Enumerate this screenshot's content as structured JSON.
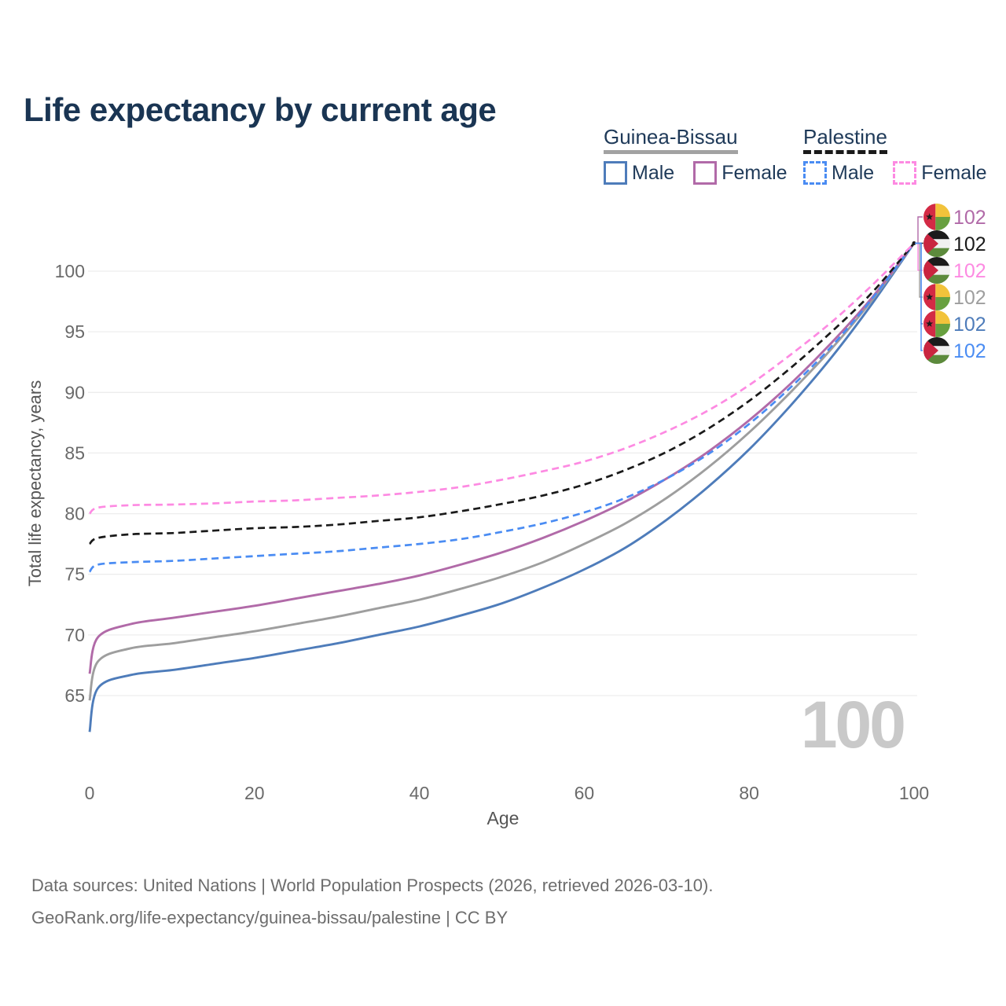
{
  "title": "Life expectancy by current age",
  "legend": {
    "groups": [
      {
        "id": "guinea-bissau",
        "label": "Guinea-Bissau",
        "underline_style": "solid",
        "underline_color": "#a2a2a2",
        "items": [
          {
            "label": "Male",
            "color": "#4e7cba",
            "style": "solid"
          },
          {
            "label": "Female",
            "color": "#b16aa8",
            "style": "solid"
          }
        ]
      },
      {
        "id": "palestine",
        "label": "Palestine",
        "underline_style": "dashed",
        "underline_color": "#1a1a1a",
        "items": [
          {
            "label": "Male",
            "color": "#4a8cf3",
            "style": "dashed"
          },
          {
            "label": "Female",
            "color": "#fd8ae2",
            "style": "dashed"
          }
        ]
      }
    ]
  },
  "watermark": "100",
  "footer": {
    "line1": "Data sources: United Nations | World Population Prospects (2026, retrieved 2026-03-10).",
    "line2": "GeoRank.org/life-expectancy/guinea-bissau/palestine | CC BY"
  },
  "chart_data": {
    "type": "line",
    "title": "Life expectancy by current age",
    "xlabel": "Age",
    "ylabel": "Total life expectancy, years",
    "xlim": [
      0,
      100
    ],
    "ylim": [
      61,
      103
    ],
    "x_ticks": [
      0,
      20,
      40,
      60,
      80,
      100
    ],
    "y_ticks": [
      65,
      70,
      75,
      80,
      85,
      90,
      95,
      100
    ],
    "grid": "horizontal",
    "legend_position": "top-right",
    "ages": [
      0,
      1,
      5,
      10,
      15,
      20,
      25,
      30,
      35,
      40,
      45,
      50,
      55,
      60,
      65,
      70,
      75,
      80,
      85,
      90,
      95,
      100
    ],
    "series": [
      {
        "id": "gb-male",
        "name": "Guinea-Bissau Male",
        "country": "Guinea-Bissau",
        "sex": "Male",
        "color": "#4e7cba",
        "dashed": false,
        "values": [
          62.0,
          65.6,
          66.7,
          67.1,
          67.6,
          68.1,
          68.7,
          69.3,
          70.0,
          70.7,
          71.6,
          72.6,
          73.9,
          75.4,
          77.2,
          79.5,
          82.2,
          85.3,
          88.9,
          92.9,
          97.4,
          102.3
        ]
      },
      {
        "id": "gb-total",
        "name": "Guinea-Bissau Both sexes",
        "country": "Guinea-Bissau",
        "sex": "Both",
        "color": "#9e9e9e",
        "dashed": false,
        "values": [
          64.6,
          67.8,
          68.9,
          69.3,
          69.8,
          70.3,
          70.9,
          71.5,
          72.2,
          72.9,
          73.8,
          74.8,
          76.0,
          77.5,
          79.2,
          81.3,
          83.8,
          86.7,
          90.0,
          93.6,
          97.7,
          102.3
        ]
      },
      {
        "id": "gb-female",
        "name": "Guinea-Bissau Female",
        "country": "Guinea-Bissau",
        "sex": "Female",
        "color": "#b16aa8",
        "dashed": false,
        "values": [
          66.8,
          69.8,
          70.9,
          71.4,
          71.9,
          72.4,
          73.0,
          73.6,
          74.2,
          74.9,
          75.8,
          76.8,
          78.0,
          79.4,
          81.0,
          82.9,
          85.1,
          87.7,
          90.7,
          94.1,
          97.9,
          102.3
        ]
      },
      {
        "id": "ps-male",
        "name": "Palestine Male",
        "country": "Palestine",
        "sex": "Male",
        "color": "#4a8cf3",
        "dashed": true,
        "values": [
          75.2,
          75.8,
          76.0,
          76.1,
          76.3,
          76.5,
          76.7,
          76.9,
          77.2,
          77.5,
          77.9,
          78.5,
          79.2,
          80.1,
          81.3,
          82.9,
          84.9,
          87.4,
          90.4,
          93.8,
          97.8,
          102.3
        ]
      },
      {
        "id": "ps-total",
        "name": "Palestine Both sexes",
        "country": "Palestine",
        "sex": "Both",
        "color": "#1a1a1a",
        "dashed": true,
        "values": [
          77.5,
          78.0,
          78.3,
          78.4,
          78.6,
          78.8,
          78.9,
          79.1,
          79.4,
          79.7,
          80.2,
          80.8,
          81.5,
          82.4,
          83.6,
          85.1,
          87.0,
          89.3,
          92.0,
          95.0,
          98.3,
          102.3
        ]
      },
      {
        "id": "ps-female",
        "name": "Palestine Female",
        "country": "Palestine",
        "sex": "Female",
        "color": "#fd8ae2",
        "dashed": true,
        "values": [
          80.0,
          80.5,
          80.7,
          80.75,
          80.85,
          81.0,
          81.1,
          81.3,
          81.5,
          81.8,
          82.2,
          82.8,
          83.5,
          84.3,
          85.4,
          86.8,
          88.5,
          90.6,
          93.1,
          95.8,
          98.9,
          102.3
        ]
      }
    ],
    "end_labels": [
      {
        "series_id": "gb-female",
        "flag": "guinea-bissau",
        "text": "102"
      },
      {
        "series_id": "ps-total",
        "flag": "palestine",
        "text": "102"
      },
      {
        "series_id": "ps-female",
        "flag": "palestine",
        "text": "102"
      },
      {
        "series_id": "gb-total",
        "flag": "guinea-bissau",
        "text": "102"
      },
      {
        "series_id": "gb-male",
        "flag": "guinea-bissau",
        "text": "102"
      },
      {
        "series_id": "ps-male",
        "flag": "palestine",
        "text": "102"
      }
    ],
    "flag_colors": {
      "guinea-bissau": {
        "red": "#d32a45",
        "yellow": "#f2c33b",
        "green": "#68a03f",
        "star": "#1b1b1b"
      },
      "palestine": {
        "black": "#1b1b1b",
        "white": "#f0f0f0",
        "green": "#5c8a3c",
        "red": "#c92540"
      }
    }
  }
}
